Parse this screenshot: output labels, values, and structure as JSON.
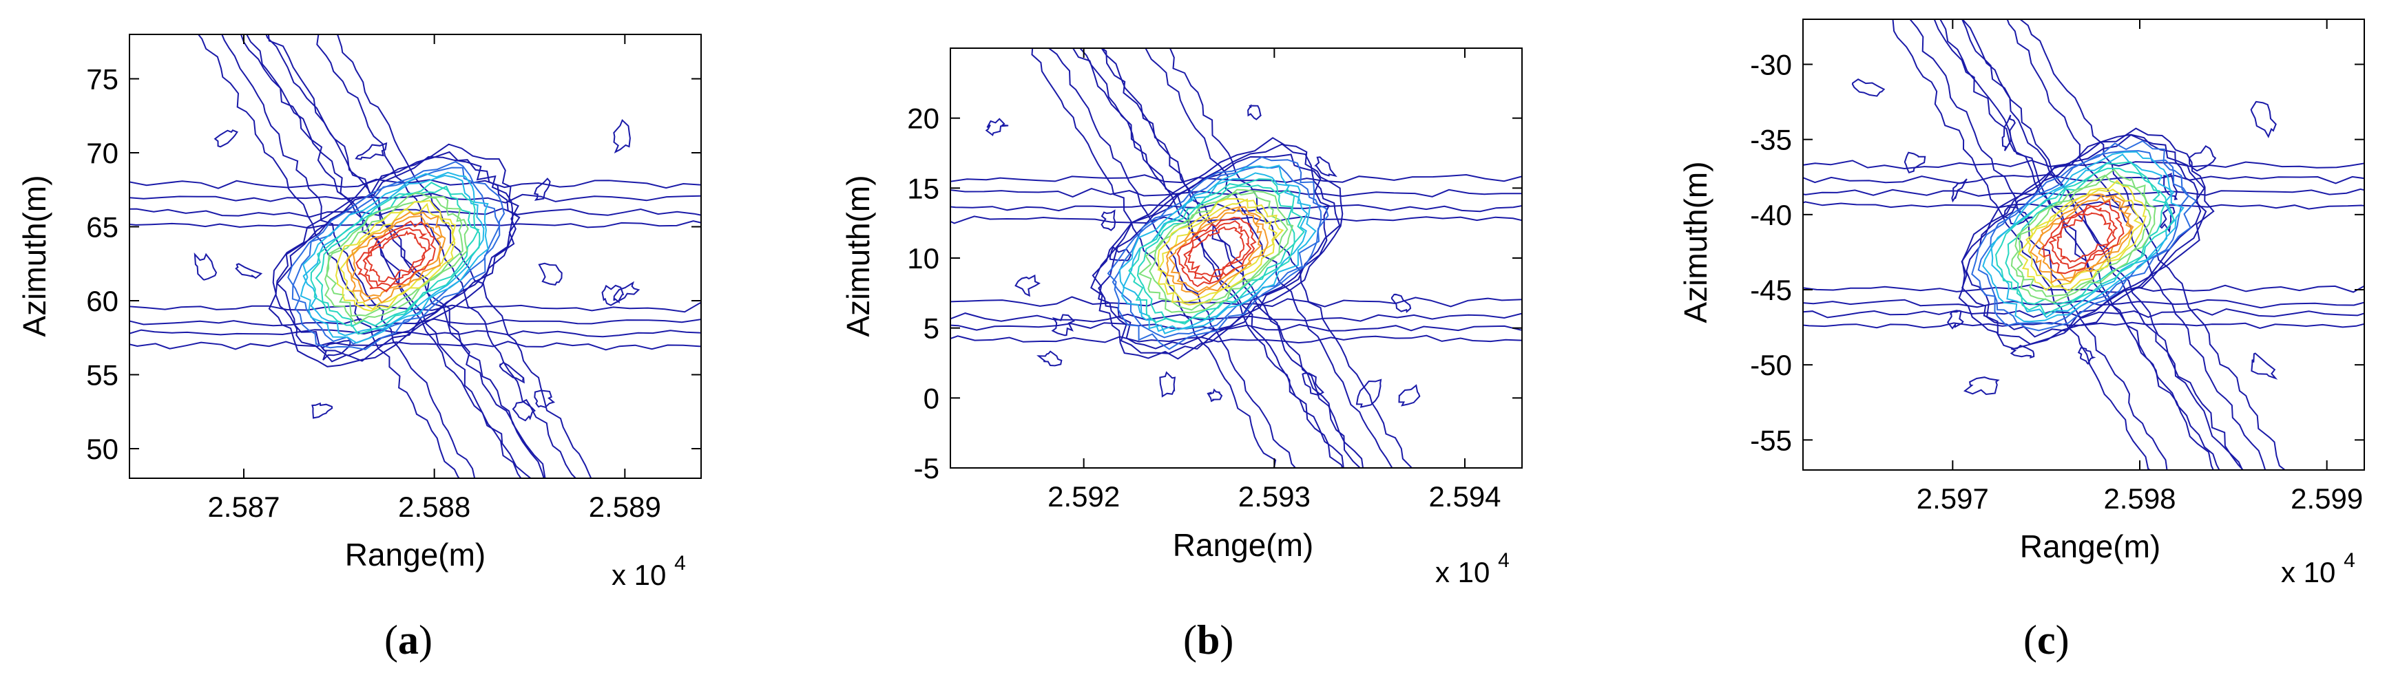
{
  "figure": {
    "panels": [
      {
        "letter": "a",
        "xlabel": "Range(m)",
        "ylabel": "Azimuth(m)",
        "multiplier_text": "x 10",
        "multiplier_exp": "4"
      },
      {
        "letter": "b",
        "xlabel": "Range(m)",
        "ylabel": "Azimuth(m)",
        "multiplier_text": "x 10",
        "multiplier_exp": "4"
      },
      {
        "letter": "c",
        "xlabel": "Range(m)",
        "ylabel": "Azimuth(m)",
        "multiplier_text": "x 10",
        "multiplier_exp": "4"
      }
    ]
  },
  "chart_data": [
    {
      "type": "contour",
      "xlabel": "Range(m)",
      "ylabel": "Azimuth(m)",
      "x_scale_multiplier": 10000,
      "xlim": [
        2.5864,
        2.5894
      ],
      "ylim": [
        48,
        78
      ],
      "xticks": [
        "2.587",
        "2.588",
        "2.589"
      ],
      "yticks": [
        "50",
        "55",
        "60",
        "65",
        "70",
        "75"
      ],
      "peak": {
        "x": 2.5878,
        "y": 63
      },
      "main_lobe_orientation_deg": -35,
      "colormap": [
        "#1a1aa8",
        "#2c6de0",
        "#22b8e8",
        "#28d6c0",
        "#7ee07a",
        "#e8e23a",
        "#f59a28",
        "#e23a2a"
      ]
    },
    {
      "type": "contour",
      "xlabel": "Range(m)",
      "ylabel": "Azimuth(m)",
      "x_scale_multiplier": 10000,
      "xlim": [
        2.5913,
        2.5943
      ],
      "ylim": [
        -5,
        25
      ],
      "xticks": [
        "2.592",
        "2.593",
        "2.594"
      ],
      "yticks": [
        "-5",
        "0",
        "5",
        "10",
        "15",
        "20"
      ],
      "peak": {
        "x": 2.5927,
        "y": 10.5
      },
      "main_lobe_orientation_deg": -35,
      "colormap": [
        "#1a1aa8",
        "#2c6de0",
        "#22b8e8",
        "#28d6c0",
        "#7ee07a",
        "#e8e23a",
        "#f59a28",
        "#e23a2a"
      ]
    },
    {
      "type": "contour",
      "xlabel": "Range(m)",
      "ylabel": "Azimuth(m)",
      "x_scale_multiplier": 10000,
      "xlim": [
        2.5962,
        2.5992
      ],
      "ylim": [
        -57,
        -27
      ],
      "xticks": [
        "2.597",
        "2.598",
        "2.599"
      ],
      "yticks": [
        "-55",
        "-50",
        "-45",
        "-40",
        "-35",
        "-30"
      ],
      "peak": {
        "x": 2.5977,
        "y": -41.5
      },
      "main_lobe_orientation_deg": -35,
      "colormap": [
        "#1a1aa8",
        "#2c6de0",
        "#22b8e8",
        "#28d6c0",
        "#7ee07a",
        "#e8e23a",
        "#f59a28",
        "#e23a2a"
      ]
    }
  ]
}
